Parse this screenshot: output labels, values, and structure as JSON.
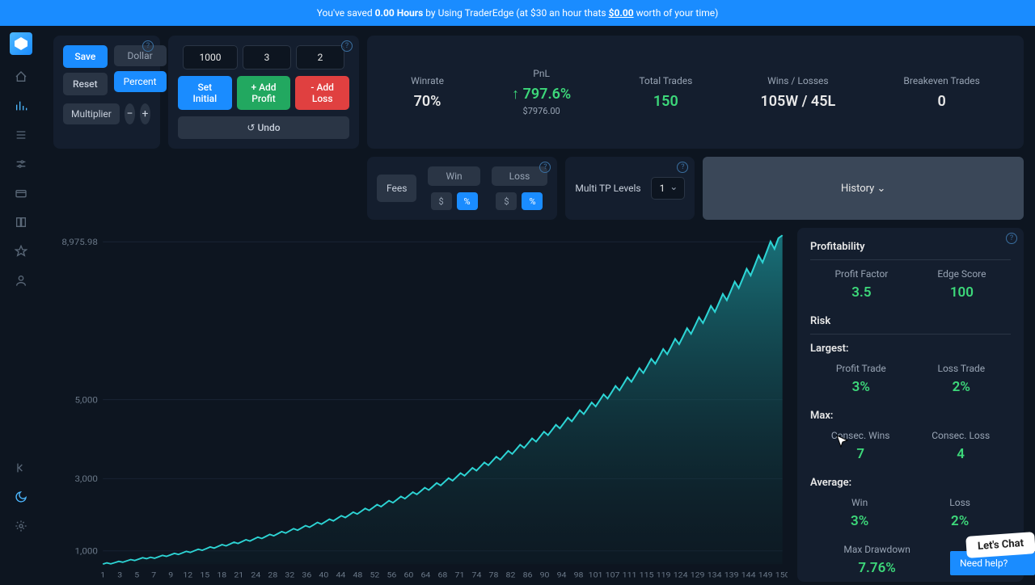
{
  "banner": {
    "prefix": "You've saved ",
    "hours": "0.00 Hours",
    "mid": " by Using TraderEdge (at $30 an hour thats ",
    "amount": "$0.00",
    "suffix": " worth of your time)"
  },
  "controls": {
    "save": "Save",
    "reset": "Reset",
    "dollar": "Dollar",
    "percent": "Percent",
    "multiplier_label": "Multiplier",
    "minus": "−",
    "plus": "+",
    "initial_value": "1000",
    "profit_value": "3",
    "loss_value": "2",
    "set_initial": "Set Initial",
    "add_profit": "+ Add Profit",
    "add_loss": "- Add Loss",
    "undo": "↺ Undo"
  },
  "stats": {
    "winrate_label": "Winrate",
    "winrate_value": "70%",
    "pnl_label": "PnL",
    "pnl_value": "797.6%",
    "pnl_sub": "$7976.00",
    "total_label": "Total Trades",
    "total_value": "150",
    "wl_label": "Wins / Losses",
    "wl_value": "105W / 45L",
    "be_label": "Breakeven Trades",
    "be_value": "0"
  },
  "fees": {
    "label": "Fees",
    "win": "Win",
    "loss": "Loss",
    "dollar": "$",
    "percent": "%"
  },
  "tp": {
    "label": "Multi TP Levels",
    "value": "1"
  },
  "history": "History ⌄",
  "chart": {
    "y_ticks": [
      "8,975.98",
      "5,000",
      "3,000",
      "1,000"
    ],
    "y_positions": [
      0.02,
      0.5,
      0.74,
      0.96
    ],
    "x_ticks": [
      "1",
      "3",
      "5",
      "7",
      "9",
      "12",
      "15",
      "18",
      "21",
      "24",
      "28",
      "32",
      "36",
      "40",
      "44",
      "48",
      "52",
      "56",
      "60",
      "64",
      "68",
      "71",
      "74",
      "78",
      "82",
      "86",
      "90",
      "94",
      "98",
      "101",
      "107",
      "111",
      "115",
      "119",
      "124",
      "129",
      "134",
      "139",
      "144",
      "149",
      "150"
    ],
    "line_color": "#2dd4d4",
    "fill_top": "#1a7a82",
    "fill_bottom": "#0d2a30",
    "background": "#0d1520",
    "series": [
      1000,
      1030,
      1005,
      1035,
      1066,
      1045,
      1077,
      1109,
      1087,
      1120,
      1154,
      1131,
      1165,
      1141,
      1176,
      1211,
      1187,
      1222,
      1259,
      1234,
      1271,
      1309,
      1283,
      1321,
      1361,
      1334,
      1374,
      1416,
      1387,
      1429,
      1472,
      1442,
      1486,
      1530,
      1500,
      1545,
      1591,
      1559,
      1606,
      1654,
      1621,
      1670,
      1720,
      1685,
      1736,
      1788,
      1752,
      1805,
      1859,
      1822,
      1877,
      1933,
      1894,
      1951,
      2010,
      1969,
      2028,
      2089,
      2048,
      2109,
      2172,
      2129,
      2193,
      2259,
      2214,
      2280,
      2349,
      2302,
      2371,
      2442,
      2393,
      2465,
      2539,
      2488,
      2563,
      2640,
      2587,
      2665,
      2745,
      2690,
      2770,
      2853,
      2796,
      2880,
      2967,
      2907,
      2995,
      3085,
      3023,
      3113,
      3207,
      3143,
      3237,
      3334,
      3267,
      3365,
      3466,
      3397,
      3499,
      3604,
      3532,
      3638,
      3747,
      3672,
      3782,
      3895,
      3818,
      3932,
      4050,
      3969,
      4088,
      4211,
      4127,
      4251,
      4378,
      4291,
      4420,
      4552,
      4461,
      4595,
      4733,
      4638,
      4777,
      4921,
      4822,
      4967,
      5116,
      5014,
      5164,
      5319,
      5213,
      5369,
      5530,
      5420,
      5582,
      5750,
      5635,
      5804,
      5978,
      5859,
      6034,
      6215,
      6091,
      6274,
      6462,
      6333,
      6523,
      6719,
      6584,
      6782,
      6985,
      6846,
      7051,
      7262,
      7117,
      7331,
      7551,
      7400,
      7622,
      7850,
      7693,
      7924,
      8162,
      7999,
      8239,
      8486,
      8316,
      8566,
      8823,
      8646,
      8906,
      8975
    ]
  },
  "profitability": {
    "title": "Profitability",
    "pf_label": "Profit Factor",
    "pf_value": "3.5",
    "edge_label": "Edge Score",
    "edge_value": "100"
  },
  "risk": {
    "title": "Risk",
    "largest": "Largest:",
    "pt_label": "Profit Trade",
    "pt_value": "3%",
    "lt_label": "Loss Trade",
    "lt_value": "2%",
    "max": "Max:",
    "cw_label": "Consec. Wins",
    "cw_value": "7",
    "cl_label": "Consec. Loss",
    "cl_value": "4",
    "avg": "Average:",
    "aw_label": "Win",
    "aw_value": "3%",
    "al_label": "Loss",
    "al_value": "2%",
    "dd_label": "Max Drawdown",
    "dd_value": "7.76%"
  },
  "chat": {
    "bubble": "Let's Chat",
    "need": "Need help?"
  }
}
